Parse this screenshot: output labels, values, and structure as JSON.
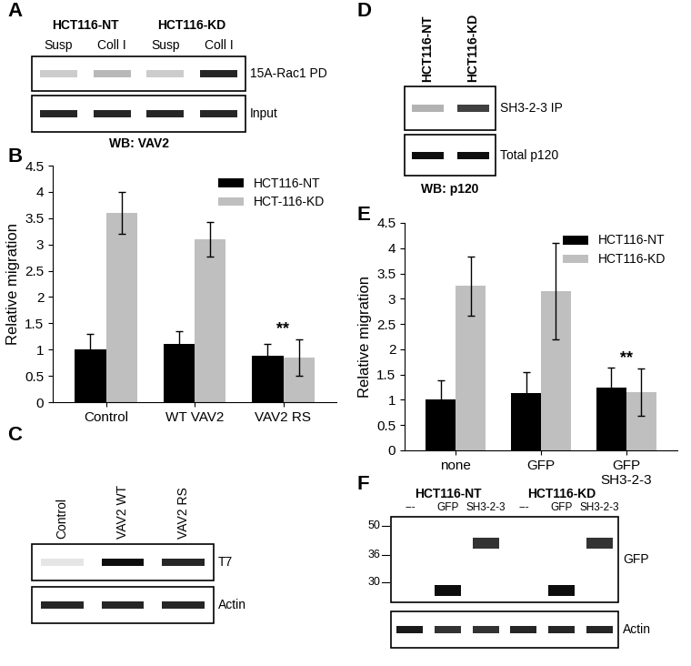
{
  "panel_labels": [
    "A",
    "B",
    "C",
    "D",
    "E",
    "F"
  ],
  "chart_data": [
    {
      "type": "bar",
      "panel": "B",
      "ylabel": "Relative migration",
      "categories": [
        "Control",
        "WT VAV2",
        "VAV2 RS"
      ],
      "series": [
        {
          "name": "HCT116-NT",
          "color": "#000000",
          "values": [
            1.0,
            1.1,
            0.88
          ],
          "errors": [
            0.3,
            0.25,
            0.22
          ]
        },
        {
          "name": "HCT-116-KD",
          "color": "#bfbfbf",
          "values": [
            3.6,
            3.1,
            0.85
          ],
          "errors": [
            0.4,
            0.33,
            0.35
          ]
        }
      ],
      "ylim": [
        0,
        4.5
      ],
      "yticks": [
        0,
        0.5,
        1,
        1.5,
        2,
        2.5,
        3,
        3.5,
        4,
        4.5
      ],
      "legend": "upper right",
      "grid": false,
      "annotations": [
        {
          "text": "**",
          "category": "VAV2 RS"
        }
      ]
    },
    {
      "type": "bar",
      "panel": "E",
      "ylabel": "Relative migration",
      "categories": [
        "none",
        "GFP",
        "GFP\nSH3-2-3"
      ],
      "series": [
        {
          "name": "HCT116-NT",
          "color": "#000000",
          "values": [
            1.0,
            1.13,
            1.25
          ],
          "errors": [
            0.38,
            0.42,
            0.38
          ]
        },
        {
          "name": "HCT116-KD",
          "color": "#bfbfbf",
          "values": [
            3.25,
            3.15,
            1.15
          ],
          "errors": [
            0.58,
            0.95,
            0.47
          ]
        }
      ],
      "ylim": [
        0,
        4.5
      ],
      "yticks": [
        0,
        0.5,
        1,
        1.5,
        2,
        2.5,
        3,
        3.5,
        4,
        4.5
      ],
      "legend": "upper right",
      "grid": false,
      "annotations": [
        {
          "text": "**",
          "category": "GFP\nSH3-2-3"
        }
      ]
    }
  ],
  "blots": {
    "A": {
      "groups": [
        "HCT116-NT",
        "HCT116-KD"
      ],
      "lanes": [
        "Susp",
        "Coll I",
        "Susp",
        "Coll I"
      ],
      "rows": [
        {
          "label": "15A-Rac1 PD",
          "intensity": [
            0.2,
            0.28,
            0.2,
            0.85
          ]
        },
        {
          "label": "Input",
          "intensity": [
            0.85,
            0.85,
            0.85,
            0.85
          ]
        }
      ],
      "footer": "WB: VAV2"
    },
    "C": {
      "lanes": [
        "Control",
        "VAV2 WT",
        "VAV2 RS"
      ],
      "rows": [
        {
          "label": "T7",
          "intensity": [
            0.1,
            0.95,
            0.85
          ]
        },
        {
          "label": "Actin",
          "intensity": [
            0.85,
            0.85,
            0.85
          ]
        }
      ]
    },
    "D": {
      "lanes": [
        "HCT116-NT",
        "HCT116-KD"
      ],
      "rows": [
        {
          "label": "SH3-2-3 IP",
          "intensity": [
            0.3,
            0.75
          ]
        },
        {
          "label": "Total p120",
          "intensity": [
            0.95,
            0.95
          ]
        }
      ],
      "footer": "WB: p120"
    },
    "F": {
      "groups": [
        "HCT116-NT",
        "HCT116-KD"
      ],
      "lanes": [
        "---",
        "GFP",
        "SH3-2-3",
        "---",
        "GFP",
        "SH3-2-3"
      ],
      "rows": [
        {
          "label": "GFP",
          "intensity": [
            0,
            0.95,
            0.8,
            0,
            0.95,
            0.8
          ],
          "band_kda": [
            null,
            27,
            42,
            null,
            27,
            42
          ],
          "markers": [
            50,
            36,
            30
          ]
        },
        {
          "label": "Actin",
          "intensity": [
            0.9,
            0.8,
            0.8,
            0.85,
            0.85,
            0.85
          ]
        }
      ]
    }
  }
}
